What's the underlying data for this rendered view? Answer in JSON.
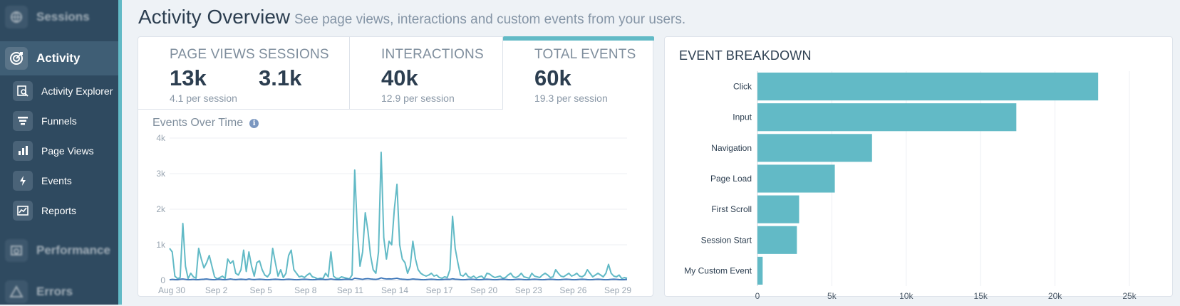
{
  "sidebar": {
    "sessions_label": "Sessions",
    "activity_label": "Activity",
    "performance_label": "Performance",
    "errors_label": "Errors",
    "items": [
      {
        "label": "Activity Explorer",
        "icon": "explorer-icon"
      },
      {
        "label": "Funnels",
        "icon": "funnel-icon"
      },
      {
        "label": "Page Views",
        "icon": "bar-chart-icon"
      },
      {
        "label": "Events",
        "icon": "lightning-icon"
      },
      {
        "label": "Reports",
        "icon": "report-icon"
      }
    ],
    "accent": "#62bac6"
  },
  "header": {
    "title": "Activity Overview",
    "subtitle": "See page views, interactions and custom events from your users."
  },
  "stats": {
    "page_views": {
      "label": "PAGE VIEWS",
      "value": "13k",
      "sub": "4.1 per session"
    },
    "sessions": {
      "label": "SESSIONS",
      "value": "3.1k"
    },
    "interactions": {
      "label": "INTERACTIONS",
      "value": "40k",
      "sub": "12.9 per session"
    },
    "total_events": {
      "label": "TOTAL EVENTS",
      "value": "60k",
      "sub": "19.3 per session"
    }
  },
  "events_over_time": {
    "title": "Events Over Time"
  },
  "event_breakdown": {
    "title": "EVENT BREAKDOWN"
  },
  "chart_data": [
    {
      "type": "line",
      "title": "Events Over Time",
      "x_ticks": [
        "Aug 30",
        "Sep 2",
        "Sep 5",
        "Sep 8",
        "Sep 11",
        "Sep 14",
        "Sep 17",
        "Sep 20",
        "Sep 23",
        "Sep 26",
        "Sep 29"
      ],
      "y_ticks": [
        "0",
        "1k",
        "2k",
        "3k",
        "4k"
      ],
      "ylim": [
        0,
        4000
      ],
      "grid": true,
      "series": [
        {
          "color": "#62bac6",
          "values": [
            900,
            800,
            120,
            50,
            80,
            1600,
            400,
            50,
            200,
            100,
            60,
            900,
            600,
            350,
            500,
            700,
            400,
            100,
            40,
            80,
            120,
            50,
            600,
            480,
            550,
            200,
            150,
            300,
            850,
            250,
            800,
            400,
            120,
            500,
            550,
            300,
            150,
            100,
            200,
            900,
            500,
            120,
            300,
            80,
            200,
            700,
            850,
            300,
            200,
            100,
            120,
            80,
            150,
            200,
            100,
            80,
            40,
            60,
            50,
            200,
            100,
            800,
            120,
            60,
            50,
            100,
            80,
            60,
            40,
            150,
            3100,
            1400,
            400,
            800,
            1900,
            1400,
            700,
            300,
            200,
            800,
            3600,
            1200,
            600,
            1100,
            1000,
            2000,
            2700,
            1000,
            600,
            500,
            200,
            400,
            1100,
            600,
            300,
            200,
            150,
            120,
            150,
            200,
            120,
            150,
            80,
            60,
            100,
            80,
            300,
            1800,
            900,
            500,
            150,
            120,
            200,
            100,
            80,
            120,
            60,
            100,
            120,
            50,
            200,
            180,
            120,
            80,
            100,
            120,
            60,
            80,
            150,
            200,
            100,
            80,
            120,
            200,
            100,
            80,
            60,
            200,
            120,
            100,
            80,
            150,
            200,
            150,
            80,
            100,
            300,
            200,
            120,
            100,
            150,
            200,
            120,
            150,
            200,
            120,
            100,
            150,
            300,
            200,
            100,
            150,
            200,
            150,
            100,
            200,
            450,
            200,
            120,
            100,
            150,
            50,
            80,
            60
          ]
        },
        {
          "color": "#3a74b8",
          "values": [
            20,
            30,
            25,
            20,
            35,
            40,
            30,
            20,
            25,
            30,
            20,
            25,
            30,
            35,
            40,
            30,
            25,
            20,
            30,
            35,
            25,
            20,
            30,
            40,
            30,
            25,
            30,
            35,
            30,
            25,
            40,
            30,
            25,
            30,
            35,
            30,
            25,
            20,
            25,
            30,
            35,
            30,
            25,
            20,
            30,
            35,
            30,
            25,
            20,
            25,
            30,
            35,
            30,
            25,
            20,
            25,
            30,
            35,
            30,
            25,
            30,
            40,
            30,
            25,
            20,
            25,
            30,
            35,
            30,
            25,
            60,
            50,
            40,
            30,
            45,
            50,
            40,
            35,
            30,
            40,
            70,
            50,
            40,
            45,
            40,
            50,
            60,
            40,
            35,
            30,
            25,
            30,
            40,
            35,
            30,
            25,
            20,
            25,
            30,
            35,
            30,
            25,
            20,
            25,
            30,
            35,
            30,
            45,
            35,
            30,
            25,
            20,
            25,
            30,
            35,
            30,
            25,
            20,
            25,
            30,
            35,
            30,
            25,
            20,
            25,
            30,
            35,
            30,
            25,
            20,
            25,
            30,
            35,
            30,
            25,
            20,
            25,
            30,
            35,
            30,
            25,
            20,
            25,
            30,
            35,
            30,
            25,
            20,
            25,
            30,
            35,
            30,
            25,
            20,
            25,
            30,
            35,
            30,
            25,
            20,
            25,
            30,
            35,
            30,
            25,
            20,
            25,
            30,
            35,
            30,
            25,
            20,
            25,
            30
          ]
        }
      ]
    },
    {
      "type": "bar",
      "orientation": "horizontal",
      "title": "EVENT BREAKDOWN",
      "categories": [
        "Click",
        "Input",
        "Navigation",
        "Page Load",
        "First Scroll",
        "Session Start",
        "My Custom Event"
      ],
      "values": [
        22900,
        17400,
        7700,
        5200,
        2800,
        2650,
        350
      ],
      "x_ticks": [
        "0",
        "5k",
        "10k",
        "15k",
        "20k",
        "25k"
      ],
      "xlim": [
        0,
        25000
      ],
      "grid": true,
      "bar_color": "#62bac6"
    }
  ]
}
